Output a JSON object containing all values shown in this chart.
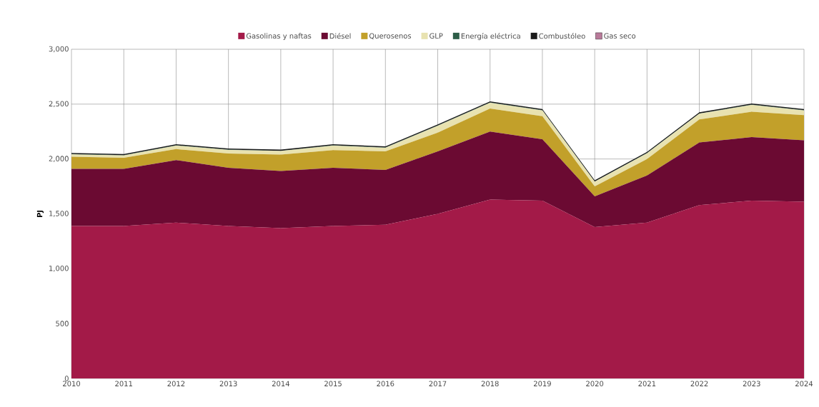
{
  "chart_data": {
    "type": "area",
    "stacked": true,
    "ylabel": "PJ",
    "x": [
      2010,
      2011,
      2012,
      2013,
      2014,
      2015,
      2016,
      2017,
      2018,
      2019,
      2020,
      2021,
      2022,
      2023,
      2024
    ],
    "series": [
      {
        "name": "Gasolinas y naftas",
        "color": "#a31a48",
        "values": [
          1390,
          1390,
          1420,
          1390,
          1370,
          1390,
          1400,
          1500,
          1630,
          1620,
          1380,
          1420,
          1580,
          1620,
          1610
        ]
      },
      {
        "name": "Diésel",
        "color": "#6b0a32",
        "values": [
          520,
          520,
          570,
          530,
          520,
          530,
          500,
          570,
          620,
          560,
          280,
          430,
          570,
          580,
          560
        ]
      },
      {
        "name": "Querosenos",
        "color": "#c2a02a",
        "values": [
          110,
          100,
          100,
          130,
          150,
          160,
          170,
          170,
          210,
          210,
          90,
          150,
          210,
          230,
          230
        ]
      },
      {
        "name": "GLP",
        "color": "#e8e2b0",
        "values": [
          22,
          22,
          32,
          32,
          32,
          42,
          32,
          62,
          52,
          52,
          42,
          52,
          52,
          62,
          42
        ]
      },
      {
        "name": "Energía eléctrica",
        "color": "#2e5e48",
        "values": [
          3,
          3,
          3,
          3,
          3,
          3,
          3,
          3,
          3,
          3,
          3,
          3,
          3,
          3,
          3
        ]
      },
      {
        "name": "Combustóleo",
        "color": "#1a1a1a",
        "values": [
          10,
          10,
          10,
          10,
          10,
          10,
          10,
          10,
          10,
          10,
          10,
          10,
          10,
          10,
          10
        ]
      },
      {
        "name": "Gas seco",
        "color": "#b97a9a",
        "values": [
          null,
          null,
          null,
          null,
          null,
          null,
          null,
          null,
          null,
          null,
          null,
          null,
          null,
          null,
          null
        ]
      }
    ],
    "xlim": [
      2010,
      2024
    ],
    "xticks": [
      2010,
      2011,
      2012,
      2013,
      2014,
      2015,
      2016,
      2017,
      2018,
      2019,
      2020,
      2021,
      2022,
      2023,
      2024
    ],
    "ylim": [
      0,
      3000
    ],
    "yticks": [
      {
        "value": 0,
        "label": "0"
      },
      {
        "value": 500,
        "label": "500"
      },
      {
        "value": 1000,
        "label": "1,000"
      },
      {
        "value": 1500,
        "label": "1,500"
      },
      {
        "value": 2000,
        "label": "2,000"
      },
      {
        "value": 2500,
        "label": "2,500"
      },
      {
        "value": 3000,
        "label": "3,000"
      }
    ],
    "grid": true,
    "legend": "top"
  }
}
